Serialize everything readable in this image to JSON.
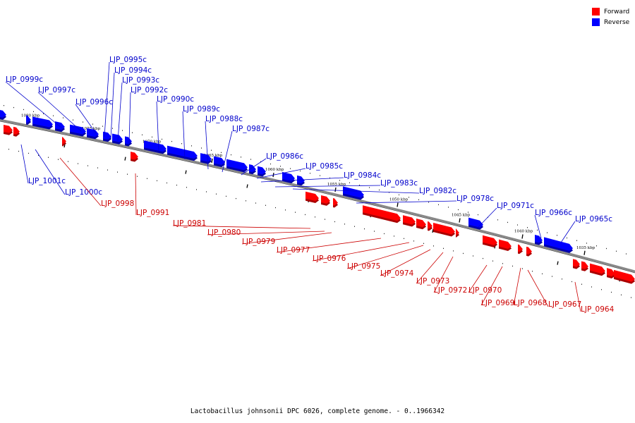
{
  "legend": [
    {
      "label": "Forward",
      "color": "#ff0000"
    },
    {
      "label": "Reverse",
      "color": "#0000ff"
    }
  ],
  "footer": "Lactobacillus johnsonii DPC 6026, complete genome. - 0..1966342",
  "colors": {
    "forward": "#ff0000",
    "reverse": "#0000ff",
    "track": "#888888",
    "label_forward": "#cc0000",
    "label_reverse": "#0000cc"
  },
  "kbp_marks": [
    "1080 kbp",
    "1075 kbp",
    "1070 kbp",
    "1065 kbp",
    "1060 kbp",
    "1055 kbp",
    "1050 kbp",
    "1045 kbp",
    "1040 kbp",
    "1035 kbp"
  ],
  "reverse_genes": [
    "LJP_0999c",
    "LJP_0997c",
    "LJP_0996c",
    "LJP_0995c",
    "LJP_0994c",
    "LJP_0993c",
    "LJP_0992c",
    "LJP_0990c",
    "LJP_0989c",
    "LJP_0988c",
    "LJP_0987c",
    "LJP_0986c",
    "LJP_0985c",
    "LJP_0984c",
    "LJP_0983c",
    "LJP_0982c",
    "LJP_0978c",
    "LJP_0971c",
    "LJP_0966c",
    "LJP_0965c",
    "LJP_1001c",
    "LJP_1000c"
  ],
  "forward_genes": [
    "LJP_0998",
    "LJP_0991",
    "LJP_0981",
    "LJP_0980",
    "LJP_0979",
    "LJP_0977",
    "LJP_0976",
    "LJP_0975",
    "LJP_0974",
    "LJP_0973",
    "LJP_0972",
    "LJP_0970",
    "LJP_0969",
    "LJP_0968",
    "LJP_0967",
    "LJP_0964"
  ]
}
